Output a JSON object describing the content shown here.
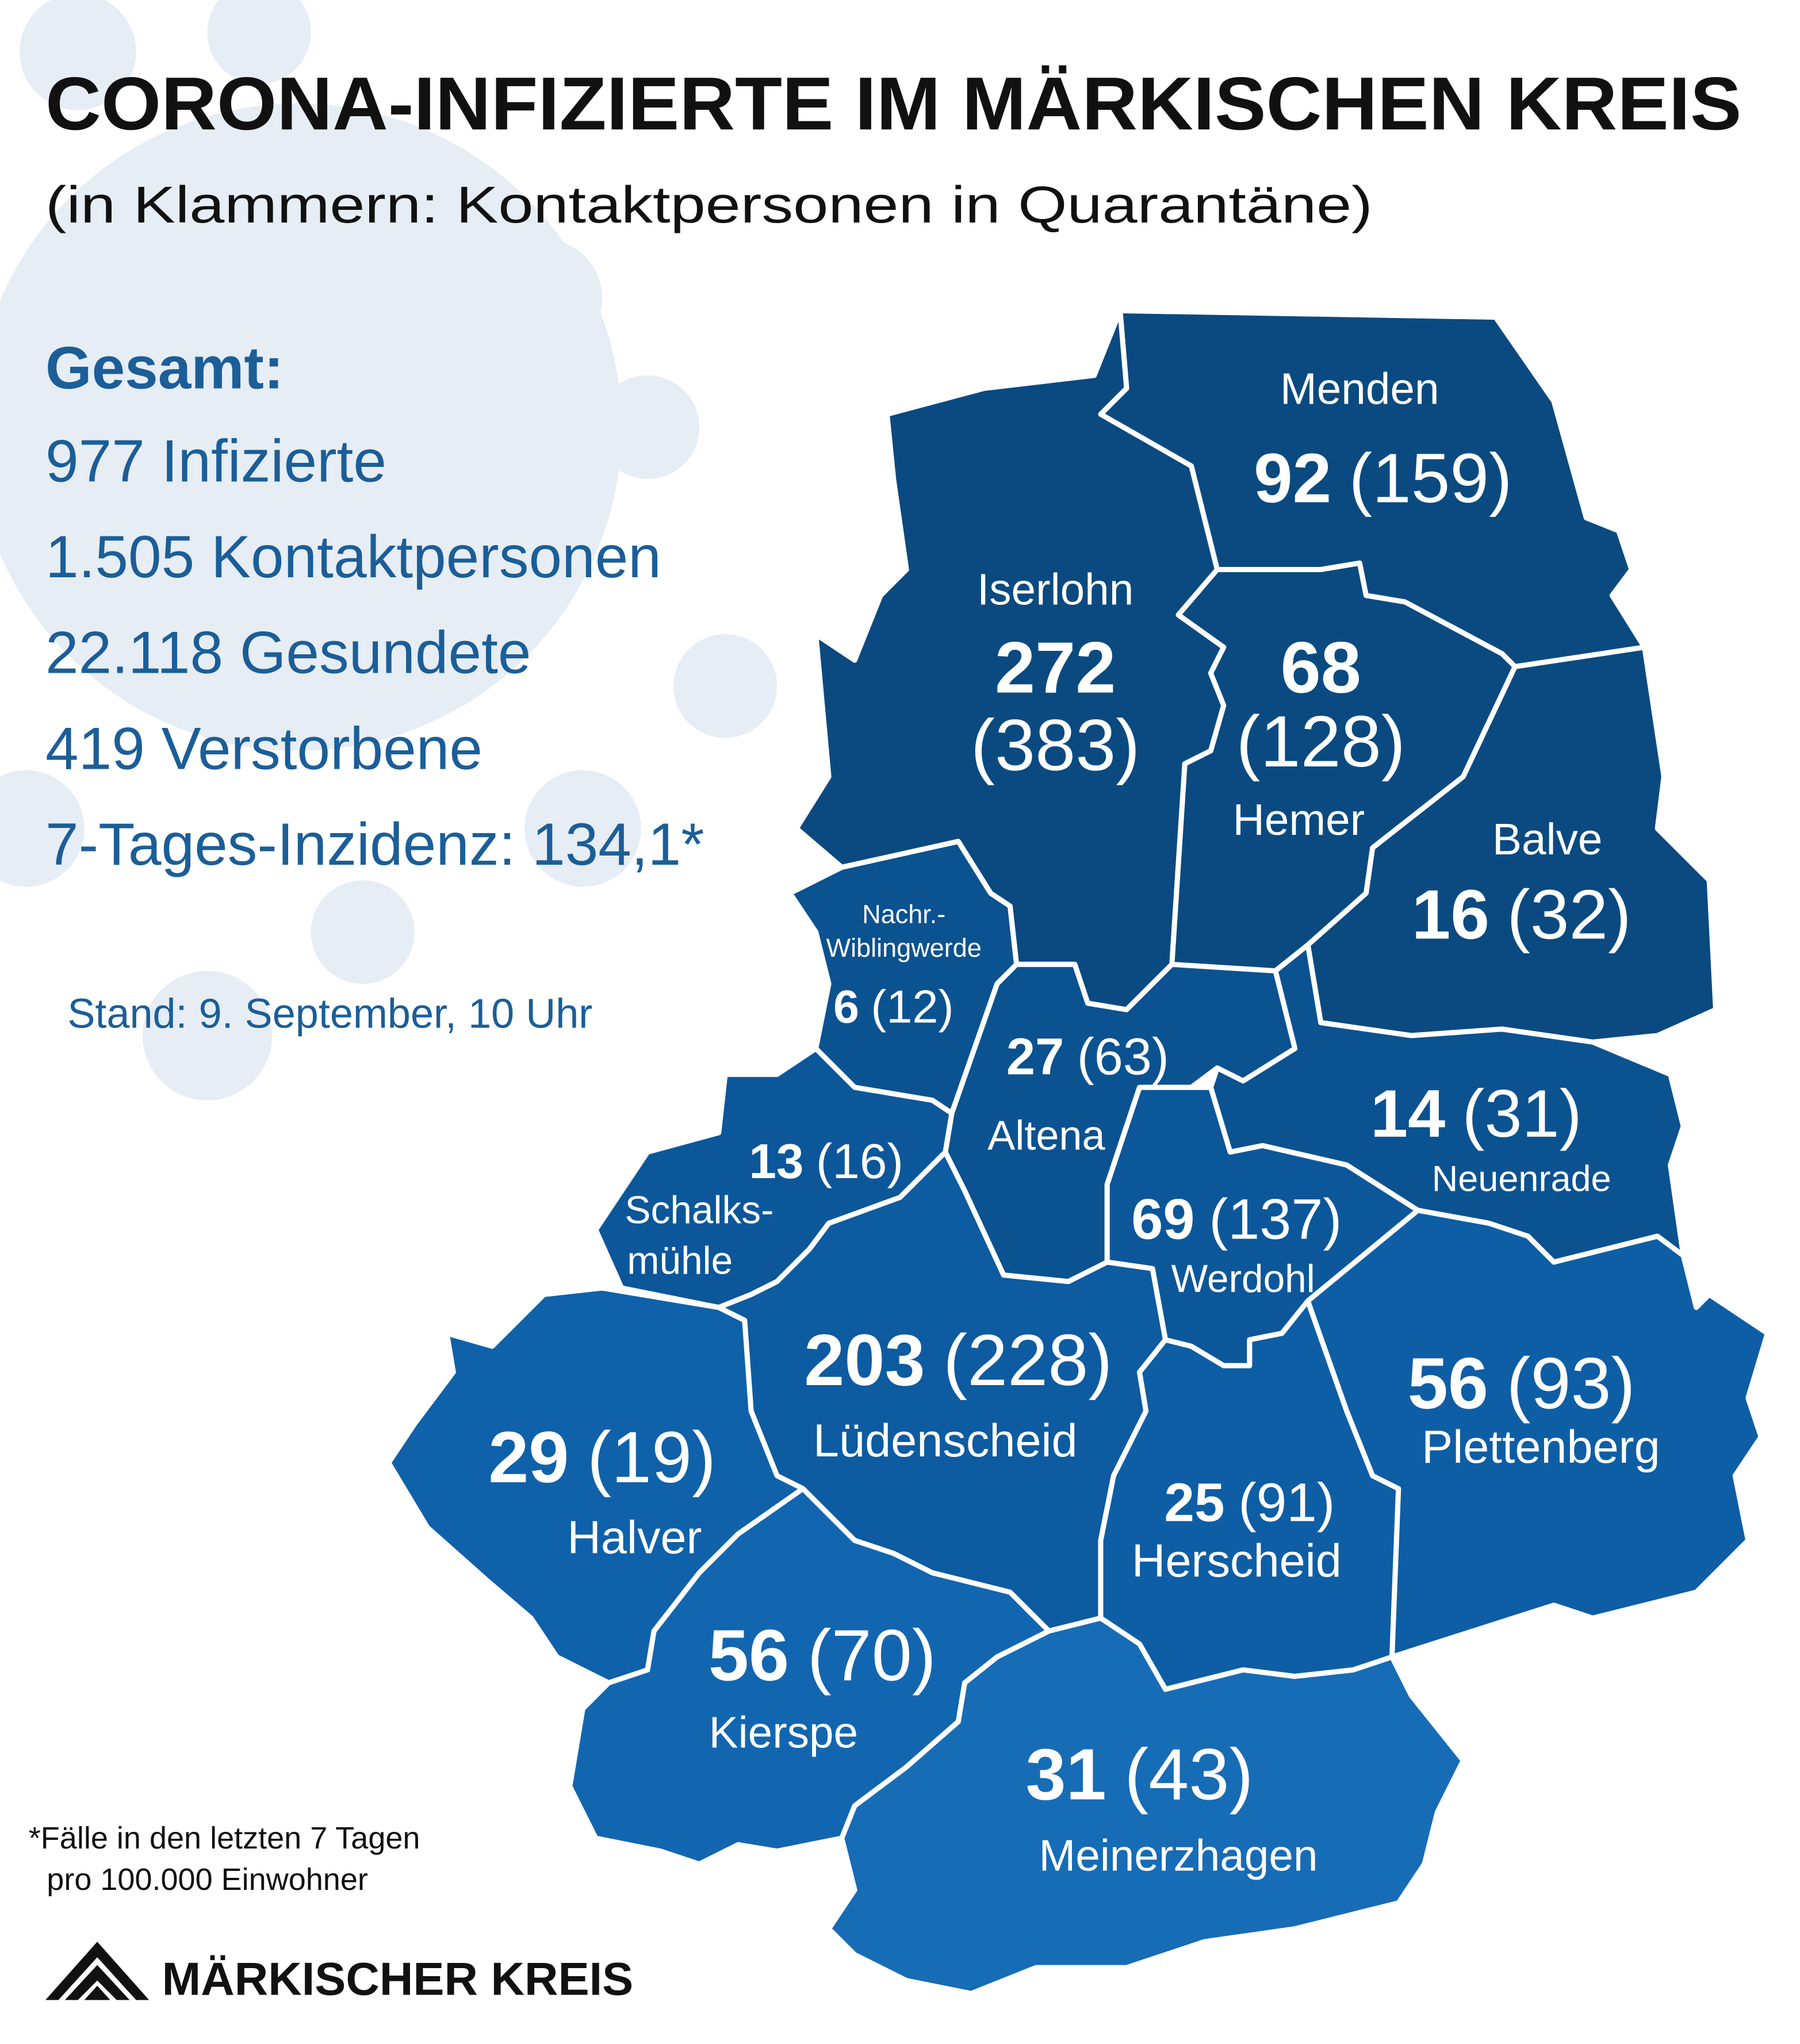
{
  "title": "CORONA-INFIZIERTE IM MÄRKISCHEN KREIS",
  "subtitle": "(in Klammern: Kontaktpersonen in Quarantäne)",
  "summary": {
    "heading": "Gesamt:",
    "lines": [
      "977 Infizierte",
      "1.505 Kontaktpersonen",
      "22.118 Gesundete",
      "419 Verstorbene",
      "7-Tages-Inzidenz: 134,1*"
    ]
  },
  "date": "Stand: 9. September, 10 Uhr",
  "footnote": [
    "*Fälle in den letzten 7 Tagen",
    "pro 100.000 Einwohner"
  ],
  "logo": "MÄRKISCHER KREIS",
  "regions": [
    {
      "name": [
        "Menden"
      ],
      "infected": "92",
      "contacts": "(159)"
    },
    {
      "name": [
        "Iserlohn"
      ],
      "infected": "272",
      "contacts": "(383)"
    },
    {
      "name": [
        "Hemer"
      ],
      "infected": "68",
      "contacts": "(128)"
    },
    {
      "name": [
        "Balve"
      ],
      "infected": "16",
      "contacts": "(32)"
    },
    {
      "name": [
        "Nachr.-",
        "Wiblingwerde"
      ],
      "infected": "6",
      "contacts": "(12)"
    },
    {
      "name": [
        "Altena"
      ],
      "infected": "27",
      "contacts": "(63)"
    },
    {
      "name": [
        "Neuenrade"
      ],
      "infected": "14",
      "contacts": "(31)"
    },
    {
      "name": [
        "Werdohl"
      ],
      "infected": "69",
      "contacts": "(137)"
    },
    {
      "name": [
        "Schalks-",
        "mühle"
      ],
      "infected": "13",
      "contacts": "(16)"
    },
    {
      "name": [
        "Lüdenscheid"
      ],
      "infected": "203",
      "contacts": "(228)"
    },
    {
      "name": [
        "Herscheid"
      ],
      "infected": "25",
      "contacts": "(91)"
    },
    {
      "name": [
        "Plettenberg"
      ],
      "infected": "56",
      "contacts": "(93)"
    },
    {
      "name": [
        "Halver"
      ],
      "infected": "29",
      "contacts": "(19)"
    },
    {
      "name": [
        "Kierspe"
      ],
      "infected": "56",
      "contacts": "(70)"
    },
    {
      "name": [
        "Meinerzhagen"
      ],
      "infected": "31",
      "contacts": "(43)"
    }
  ]
}
